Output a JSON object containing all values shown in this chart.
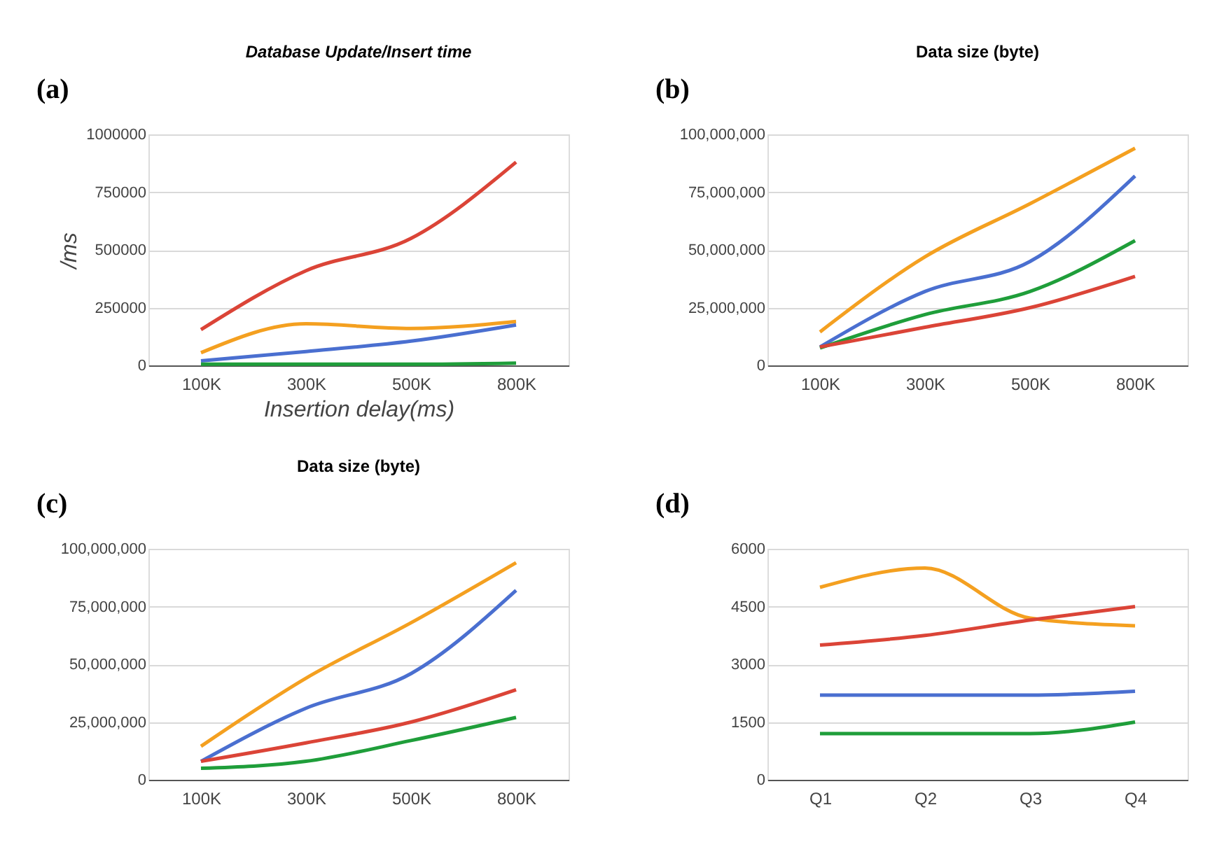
{
  "chart_data": [
    {
      "type": "line",
      "title": "Database Update/Insert time",
      "xlabel": "Insertion delay(ms)",
      "ylabel": "/ms",
      "annotations": [
        "(a)"
      ],
      "categories": [
        "100K",
        "300K",
        "500K",
        "800K"
      ],
      "ylim": [
        0,
        1000000
      ],
      "yticks": [
        0,
        250000,
        500000,
        750000,
        1000000
      ],
      "grid": "y",
      "series": [
        {
          "color": "#db4437",
          "values": [
            155000,
            410000,
            550000,
            880000
          ]
        },
        {
          "color": "#f4a020",
          "values": [
            55000,
            180000,
            160000,
            190000
          ]
        },
        {
          "color": "#4a6fd0",
          "values": [
            20000,
            60000,
            105000,
            175000
          ]
        },
        {
          "color": "#1f9e3a",
          "values": [
            5000,
            5000,
            5000,
            10000
          ]
        }
      ]
    },
    {
      "type": "line",
      "title": "Data size (byte)",
      "annotations": [
        "(b)"
      ],
      "categories": [
        "100K",
        "300K",
        "500K",
        "800K"
      ],
      "ylim": [
        0,
        100000000
      ],
      "yticks": [
        0,
        {
          "value": 25000000,
          "label": "25,000,000"
        },
        {
          "value": 50000000,
          "label": "50,000,000"
        },
        {
          "value": 75000000,
          "label": "75,000,000"
        },
        {
          "value": 100000000,
          "label": "100,000,000"
        }
      ],
      "grid": "y",
      "series": [
        {
          "color": "#f4a020",
          "values": [
            14500000,
            47000000,
            70000000,
            94000000
          ]
        },
        {
          "color": "#4a6fd0",
          "values": [
            8000000,
            32000000,
            45000000,
            82000000
          ]
        },
        {
          "color": "#1f9e3a",
          "values": [
            7500000,
            22000000,
            32000000,
            54000000
          ]
        },
        {
          "color": "#db4437",
          "values": [
            8000000,
            16500000,
            25000000,
            38500000
          ]
        }
      ]
    },
    {
      "type": "line",
      "title": "Data size (byte)",
      "annotations": [
        "(c)"
      ],
      "categories": [
        "100K",
        "300K",
        "500K",
        "800K"
      ],
      "ylim": [
        0,
        100000000
      ],
      "yticks": [
        0,
        {
          "value": 25000000,
          "label": "25,000,000"
        },
        {
          "value": 50000000,
          "label": "50,000,000"
        },
        {
          "value": 75000000,
          "label": "75,000,000"
        },
        {
          "value": 100000000,
          "label": "100,000,000"
        }
      ],
      "grid": "y",
      "series": [
        {
          "color": "#f4a020",
          "values": [
            14500000,
            44000000,
            68000000,
            94000000
          ]
        },
        {
          "color": "#4a6fd0",
          "values": [
            8000000,
            31000000,
            46000000,
            82000000
          ]
        },
        {
          "color": "#db4437",
          "values": [
            8000000,
            16000000,
            25000000,
            39000000
          ]
        },
        {
          "color": "#1f9e3a",
          "values": [
            5000000,
            8000000,
            17000000,
            27000000
          ]
        }
      ]
    },
    {
      "type": "line",
      "annotations": [
        "(d)"
      ],
      "categories": [
        "Q1",
        "Q2",
        "Q3",
        "Q4"
      ],
      "ylim": [
        0,
        6000
      ],
      "yticks": [
        0,
        1500,
        3000,
        4500,
        6000
      ],
      "grid": "y",
      "series": [
        {
          "color": "#f4a020",
          "values": [
            5000,
            5500,
            4200,
            4000
          ]
        },
        {
          "color": "#db4437",
          "values": [
            3500,
            3750,
            4150,
            4500
          ]
        },
        {
          "color": "#4a6fd0",
          "values": [
            2200,
            2200,
            2200,
            2300
          ]
        },
        {
          "color": "#1f9e3a",
          "values": [
            1200,
            1200,
            1200,
            1500
          ]
        }
      ]
    }
  ]
}
